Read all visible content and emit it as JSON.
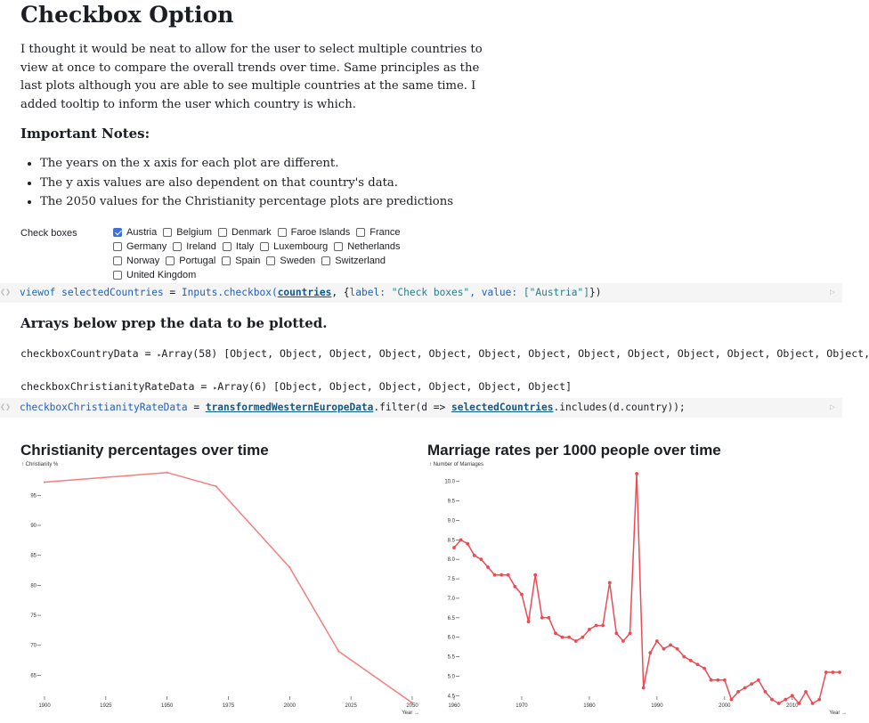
{
  "page": {
    "title": "Checkbox Option",
    "intro": "I thought it would be neat to allow for the user to select multiple countries to view at once to compare the overall trends over time. Same principles as the last plots although you are able to see multiple countries at the same time. I added tooltip to inform the user which country is which.",
    "notes_heading": "Important Notes:",
    "notes": [
      "The years on the x axis for each plot are different.",
      "The y axis values are also dependent on that country's data.",
      "The 2050 values for the Christianity percentage plots are predictions"
    ],
    "arrays_heading": "Arrays below prep the data to be plotted."
  },
  "checkbox": {
    "label": "Check boxes",
    "rows": [
      [
        {
          "name": "Austria",
          "checked": true
        },
        {
          "name": "Belgium",
          "checked": false
        },
        {
          "name": "Denmark",
          "checked": false
        },
        {
          "name": "Faroe Islands",
          "checked": false
        },
        {
          "name": "France",
          "checked": false
        }
      ],
      [
        {
          "name": "Germany",
          "checked": false
        },
        {
          "name": "Ireland",
          "checked": false
        },
        {
          "name": "Italy",
          "checked": false
        },
        {
          "name": "Luxembourg",
          "checked": false
        },
        {
          "name": "Netherlands",
          "checked": false
        }
      ],
      [
        {
          "name": "Norway",
          "checked": false
        },
        {
          "name": "Portugal",
          "checked": false
        },
        {
          "name": "Spain",
          "checked": false
        },
        {
          "name": "Sweden",
          "checked": false
        },
        {
          "name": "Switzerland",
          "checked": false
        }
      ],
      [
        {
          "name": "United Kingdom",
          "checked": false
        }
      ]
    ]
  },
  "cells": {
    "viewof_cell": {
      "prefix": "viewof",
      "var": "selectedCountries",
      "eq": " = ",
      "fn": "Inputs.checkbox(",
      "arg": "countries",
      "opts_a": ", {",
      "label_key": "label:",
      "label_val": " \"Check boxes\"",
      "value_key": ", value:",
      "value_val": " [\"Austria\"]",
      "close": "})"
    },
    "out1": {
      "name": "checkboxCountryData",
      "eq": " = ",
      "tri": "▸",
      "val": "Array(58) [Object, Object, Object, Object, Object, Object, Object, Object, Object, Object, Object, Object, Object,"
    },
    "out2": {
      "name": "checkboxChristianityRateData",
      "eq": " = ",
      "tri": "▸",
      "val": "Array(6) [Object, Object, Object, Object, Object, Object]"
    },
    "filter_cell": {
      "var": "checkboxChristianityRateData",
      "eq": " = ",
      "ref1": "transformedWesternEuropeData",
      "mid": ".filter(d => ",
      "ref2": "selectedCountries",
      "end": ".includes(d.country));"
    }
  },
  "colors": {
    "line": "#f47e7e",
    "line2": "#ec4b55",
    "checkbox_accent": "#3b73d9"
  },
  "chart_data": [
    {
      "type": "line",
      "title": "Christianity percentages over time",
      "ylabel": "↑ Christianity %",
      "xlabel": "Year →",
      "x": [
        1900,
        1950,
        1970,
        2000,
        2020,
        2050
      ],
      "y": [
        97.2,
        98.8,
        96.5,
        83.0,
        69.0,
        60.4
      ],
      "xlim": [
        1900,
        2050
      ],
      "ylim": [
        61.5,
        99.5
      ],
      "xticks": [
        1900,
        1925,
        1950,
        1975,
        2000,
        2025,
        2050
      ],
      "yticks": [
        65,
        70,
        75,
        80,
        85,
        90,
        95
      ],
      "markers": false
    },
    {
      "type": "line",
      "title": "Marriage rates per 1000 people over time",
      "ylabel": "↑ Number of Marriages",
      "xlabel": "Year →",
      "x": [
        1960,
        1961,
        1962,
        1963,
        1964,
        1965,
        1966,
        1967,
        1968,
        1969,
        1970,
        1971,
        1972,
        1973,
        1974,
        1975,
        1976,
        1977,
        1978,
        1979,
        1980,
        1981,
        1982,
        1983,
        1984,
        1985,
        1986,
        1987,
        1988,
        1989,
        1990,
        1991,
        1992,
        1993,
        1994,
        1995,
        1996,
        1997,
        1998,
        1999,
        2000,
        2001,
        2002,
        2003,
        2004,
        2005,
        2006,
        2007,
        2008,
        2009,
        2010,
        2011,
        2012,
        2013,
        2014,
        2015,
        2016,
        2017
      ],
      "y": [
        8.3,
        8.5,
        8.4,
        8.1,
        8.0,
        7.8,
        7.6,
        7.6,
        7.6,
        7.3,
        7.1,
        6.4,
        7.6,
        6.5,
        6.5,
        6.1,
        6.0,
        6.0,
        5.9,
        6.0,
        6.2,
        6.3,
        6.3,
        7.4,
        6.1,
        5.9,
        6.1,
        10.2,
        4.7,
        5.6,
        5.9,
        5.7,
        5.8,
        5.7,
        5.5,
        5.4,
        5.3,
        5.2,
        4.9,
        4.9,
        4.9,
        4.4,
        4.6,
        4.7,
        4.8,
        4.9,
        4.6,
        4.4,
        4.3,
        4.4,
        4.5,
        4.3,
        4.6,
        4.3,
        4.4,
        5.1,
        5.1,
        5.1
      ],
      "xlim": [
        1960,
        2017
      ],
      "ylim": [
        4.3,
        10.2
      ],
      "xticks": [
        1960,
        1970,
        1980,
        1990,
        2000,
        2010
      ],
      "yticks": [
        "4.5",
        "5.0",
        "5.5",
        "6.0",
        "6.5",
        "7.0",
        "7.5",
        "8.0",
        "8.5",
        "9.0",
        "9.5",
        "10.0"
      ],
      "markers": true
    }
  ]
}
